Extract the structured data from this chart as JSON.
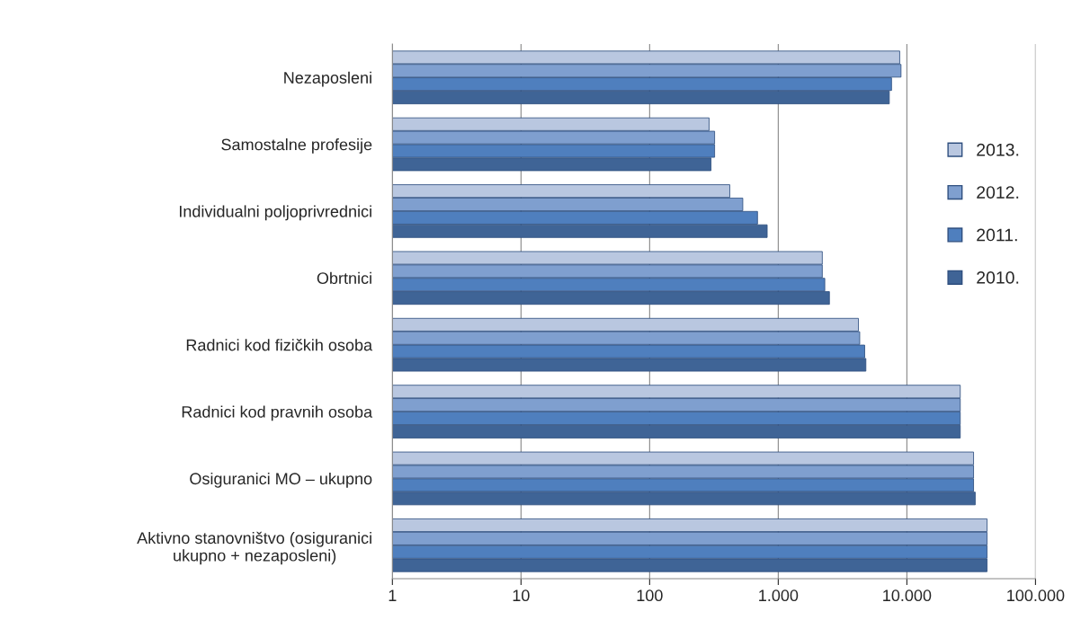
{
  "chart_data": {
    "type": "bar",
    "orientation": "horizontal",
    "log": "x",
    "categories": [
      "Nezaposleni",
      "Samostalne profesije",
      "Individualni poljoprivrednici",
      "Obrtnici",
      "Radnici kod fizičkih osoba",
      "Radnici kod pravnih osoba",
      "Osiguranici MO – ukupno",
      "Aktivno stanovništvo (osiguranici\nukupno + nezaposleni)"
    ],
    "series": [
      {
        "name": "2013.",
        "color": "#b9c7e0",
        "values": [
          8800,
          290,
          420,
          2200,
          4200,
          26000,
          33000,
          42000
        ]
      },
      {
        "name": "2012.",
        "color": "#7f9fcf",
        "values": [
          9000,
          320,
          530,
          2200,
          4300,
          26000,
          33000,
          42000
        ]
      },
      {
        "name": "2011.",
        "color": "#4f7fbe",
        "values": [
          7600,
          320,
          690,
          2300,
          4700,
          26000,
          33000,
          42000
        ]
      },
      {
        "name": "2010.",
        "color": "#3f6496",
        "values": [
          7300,
          300,
          820,
          2500,
          4800,
          26000,
          34000,
          42000
        ]
      }
    ],
    "xlim": [
      1,
      100000
    ],
    "xticks": [
      1,
      10,
      100,
      {
        "value": 1000,
        "label": "1.000"
      },
      {
        "value": 10000,
        "label": "10.000"
      },
      {
        "value": 100000,
        "label": "100.000"
      }
    ],
    "grid": "x",
    "legend": "right"
  }
}
